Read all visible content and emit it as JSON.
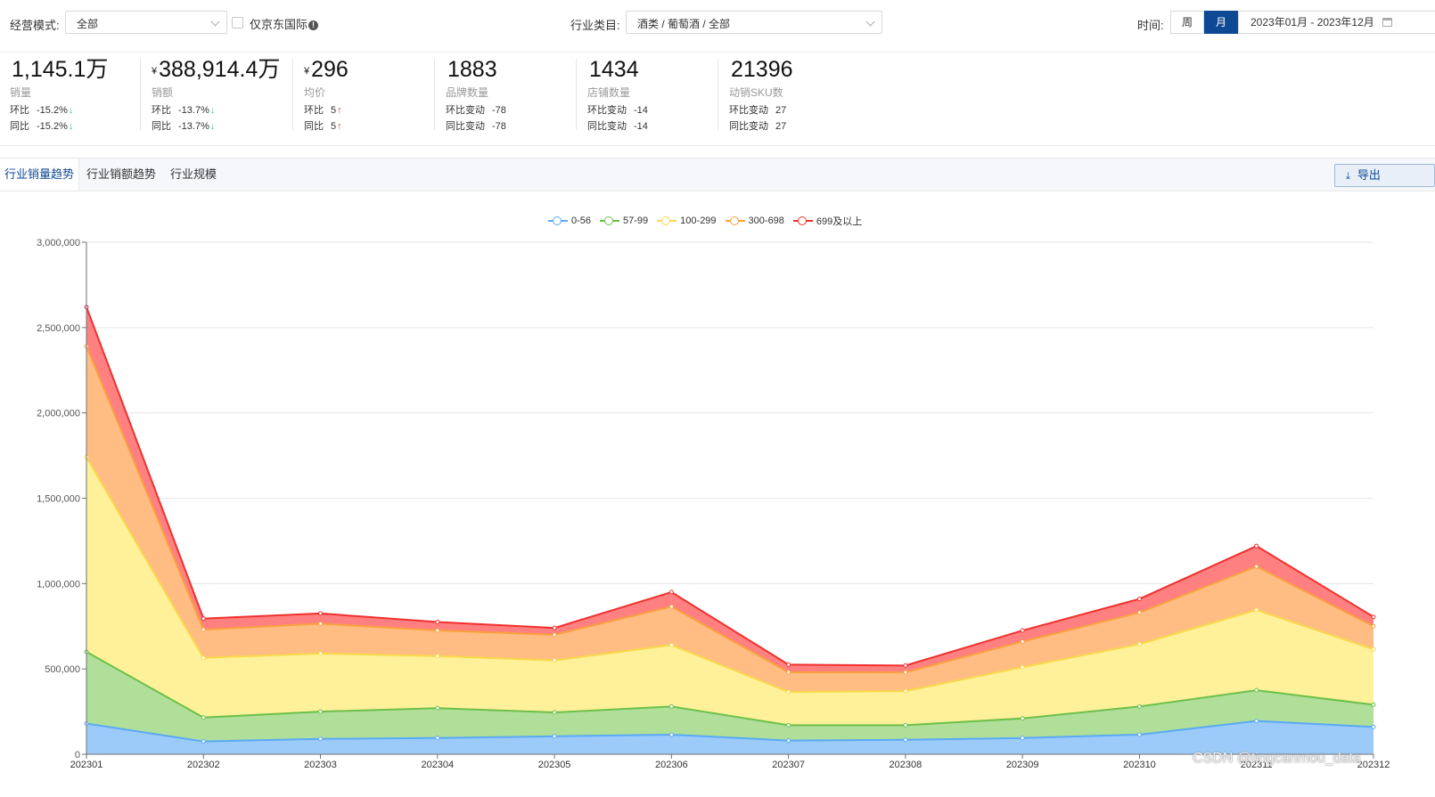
{
  "filters": {
    "mode_label": "经营模式:",
    "mode_value": "全部",
    "jd_intl_label": "仅京东国际",
    "category_label": "行业类目:",
    "category_value": "酒类 / 葡萄酒 / 全部",
    "time_label": "时间:",
    "week_label": "周",
    "month_label": "月",
    "date_range": "2023年01月 - 2023年12月"
  },
  "kpis": [
    {
      "value": "1,145.1万",
      "prefix": "",
      "name": "销量",
      "row1_label": "环比",
      "row1_value": "-15.2%",
      "row1_dir": "down",
      "row2_label": "同比",
      "row2_value": "-15.2%",
      "row2_dir": "down"
    },
    {
      "value": "388,914.4万",
      "prefix": "¥",
      "name": "销额",
      "row1_label": "环比",
      "row1_value": "-13.7%",
      "row1_dir": "down",
      "row2_label": "同比",
      "row2_value": "-13.7%",
      "row2_dir": "down"
    },
    {
      "value": "296",
      "prefix": "¥",
      "name": "均价",
      "row1_label": "环比",
      "row1_value": "5",
      "row1_dir": "up",
      "row2_label": "同比",
      "row2_value": "5",
      "row2_dir": "up"
    },
    {
      "value": "1883",
      "prefix": "",
      "name": "品牌数量",
      "row1_label": "环比变动",
      "row1_value": "-78",
      "row1_dir": "",
      "row2_label": "同比变动",
      "row2_value": "-78",
      "row2_dir": ""
    },
    {
      "value": "1434",
      "prefix": "",
      "name": "店铺数量",
      "row1_label": "环比变动",
      "row1_value": "-14",
      "row1_dir": "",
      "row2_label": "同比变动",
      "row2_value": "-14",
      "row2_dir": ""
    },
    {
      "value": "21396",
      "prefix": "",
      "name": "动销SKU数",
      "row1_label": "环比变动",
      "row1_value": "27",
      "row1_dir": "",
      "row2_label": "同比变动",
      "row2_value": "27",
      "row2_dir": ""
    }
  ],
  "tabs": {
    "items": [
      "行业销量趋势",
      "行业销额趋势",
      "行业规模"
    ],
    "export_label": "导出"
  },
  "watermark": "CSDN @tingcanmou_data",
  "colors": {
    "accent": "#0e4a94"
  },
  "chart_data": {
    "type": "area",
    "stacked": true,
    "title": "",
    "xlabel": "",
    "ylabel": "",
    "ylim": [
      0,
      3000000
    ],
    "yticks": [
      0,
      500000,
      1000000,
      1500000,
      2000000,
      2500000,
      3000000
    ],
    "ytick_labels": [
      "0",
      "500,000",
      "1,000,000",
      "1,500,000",
      "2,000,000",
      "2,500,000",
      "3,000,000"
    ],
    "categories": [
      "202301",
      "202302",
      "202303",
      "202304",
      "202305",
      "202306",
      "202307",
      "202308",
      "202309",
      "202310",
      "202311",
      "202312"
    ],
    "legend_position": "top-center",
    "series": [
      {
        "name": "0-56",
        "color": "#5aa9f5",
        "fill": "#9ccbf9",
        "values": [
          180000,
          75000,
          90000,
          95000,
          105000,
          115000,
          80000,
          85000,
          95000,
          115000,
          195000,
          160000
        ]
      },
      {
        "name": "57-99",
        "color": "#6cc04a",
        "fill": "#b0df9a",
        "values": [
          420000,
          140000,
          160000,
          175000,
          140000,
          165000,
          90000,
          85000,
          115000,
          165000,
          180000,
          130000
        ]
      },
      {
        "name": "100-299",
        "color": "#f8d94a",
        "fill": "#fff09a",
        "values": [
          1140000,
          350000,
          340000,
          305000,
          305000,
          360000,
          195000,
          200000,
          300000,
          365000,
          470000,
          325000
        ]
      },
      {
        "name": "300-698",
        "color": "#f8a23e",
        "fill": "#ffbd84",
        "values": [
          650000,
          165000,
          175000,
          150000,
          150000,
          225000,
          115000,
          110000,
          150000,
          185000,
          255000,
          135000
        ]
      },
      {
        "name": "699及以上",
        "color": "#f0302e",
        "fill": "#ff8080",
        "values": [
          230000,
          65000,
          60000,
          50000,
          40000,
          85000,
          45000,
          40000,
          65000,
          80000,
          120000,
          55000
        ]
      }
    ]
  }
}
